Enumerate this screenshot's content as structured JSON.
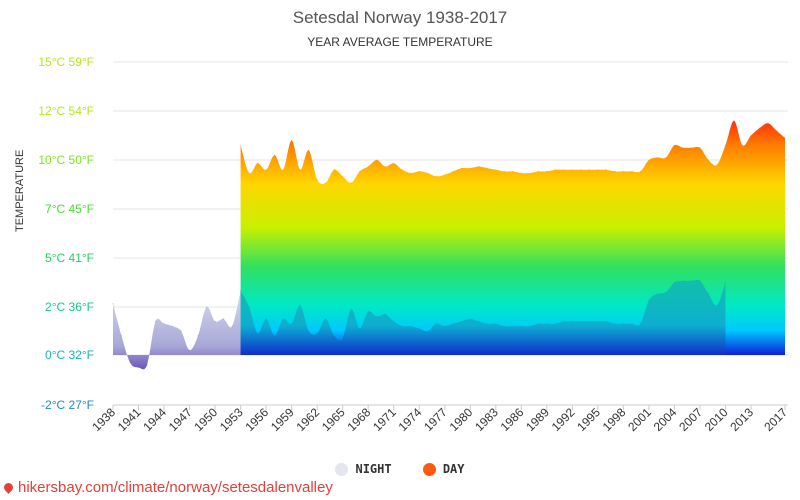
{
  "header": {
    "title": "Setesdal Norway 1938-2017",
    "subtitle": "YEAR AVERAGE TEMPERATURE"
  },
  "source_text": "hikersbay.com/climate/norway/setesdalenvalley",
  "legend": {
    "night_label": "NIGHT",
    "day_label": "DAY",
    "night_color": "#e3e6ef",
    "day_color": "#ff5a14"
  },
  "chart_data": {
    "type": "area",
    "title": "Setesdal Norway 1938-2017",
    "subtitle": "YEAR AVERAGE TEMPERATURE",
    "ylabel": "TEMPERATURE",
    "ylim": [
      -2,
      15
    ],
    "y_ticks": [
      {
        "value": 15,
        "label": "15°C 59°F",
        "color": "#b4e61e"
      },
      {
        "value": 12,
        "label": "12°C 54°F",
        "color": "#b4e61e"
      },
      {
        "value": 10,
        "label": "10°C 50°F",
        "color": "#78e61e"
      },
      {
        "value": 7,
        "label": "7°C 45°F",
        "color": "#46dc32"
      },
      {
        "value": 5,
        "label": "5°C 41°F",
        "color": "#1ed25a"
      },
      {
        "value": 2,
        "label": "2°C 36°F",
        "color": "#14c88c"
      },
      {
        "value": 0,
        "label": "0°C 32°F",
        "color": "#14b4b4"
      },
      {
        "value": -2,
        "label": "-2°C 27°F",
        "color": "#1e8cc8"
      }
    ],
    "xlim": [
      1938,
      2017
    ],
    "x_tick_labels": [
      "1938",
      "1941",
      "1944",
      "1947",
      "1950",
      "1953",
      "1956",
      "1959",
      "1962",
      "1965",
      "1968",
      "1971",
      "1974",
      "1977",
      "1980",
      "1983",
      "1986",
      "1989",
      "1992",
      "1995",
      "1998",
      "2001",
      "2004",
      "2007",
      "2010",
      "2013",
      "2017"
    ],
    "grid": true,
    "legend_position": "bottom",
    "series": [
      {
        "name": "NIGHT",
        "x": [
          1938,
          1939,
          1940,
          1941,
          1942,
          1943,
          1944,
          1945,
          1946,
          1947,
          1948,
          1949,
          1950,
          1951,
          1952,
          1953,
          1954,
          1955,
          1956,
          1957,
          1958,
          1959,
          1960,
          1961,
          1962,
          1963,
          1964,
          1965,
          1966,
          1967,
          1968,
          1969,
          1970,
          1971,
          1972,
          1973,
          1974,
          1975,
          1976,
          1977,
          1978,
          1979,
          1980,
          1981,
          1982,
          1983,
          1984,
          1985,
          1986,
          1987,
          1988,
          1989,
          1990,
          1991,
          1992,
          1993,
          1994,
          1995,
          1996,
          1997,
          1998,
          1999,
          2000,
          2001,
          2002,
          2003,
          2004,
          2005,
          2006,
          2007,
          2008,
          2009,
          2010
        ],
        "values": [
          2.2,
          0.8,
          -0.3,
          -0.5,
          -0.4,
          1.4,
          1.3,
          1.2,
          1.0,
          0.2,
          0.8,
          2.0,
          1.4,
          1.5,
          1.2,
          3.0,
          2.0,
          0.9,
          1.5,
          0.8,
          1.5,
          1.3,
          2.1,
          1.0,
          0.9,
          1.5,
          0.8,
          0.7,
          1.9,
          1.1,
          1.8,
          1.6,
          1.7,
          1.4,
          1.2,
          1.2,
          1.1,
          1.0,
          1.3,
          1.2,
          1.3,
          1.4,
          1.5,
          1.4,
          1.3,
          1.3,
          1.2,
          1.2,
          1.2,
          1.2,
          1.3,
          1.3,
          1.3,
          1.4,
          1.4,
          1.4,
          1.4,
          1.4,
          1.4,
          1.3,
          1.3,
          1.3,
          1.3,
          2.4,
          2.8,
          2.9,
          3.5,
          3.6,
          3.6,
          3.6,
          2.8,
          2.1,
          3.5
        ]
      },
      {
        "name": "DAY",
        "x": [
          1953,
          1954,
          1955,
          1956,
          1957,
          1958,
          1959,
          1960,
          1961,
          1962,
          1963,
          1964,
          1965,
          1966,
          1967,
          1968,
          1969,
          1970,
          1971,
          1972,
          1973,
          1974,
          1975,
          1976,
          1977,
          1978,
          1979,
          1980,
          1981,
          1982,
          1983,
          1984,
          1985,
          1986,
          1987,
          1988,
          1989,
          1990,
          1991,
          1992,
          1993,
          1994,
          1995,
          1996,
          1997,
          1998,
          1999,
          2000,
          2001,
          2002,
          2003,
          2004,
          2005,
          2006,
          2007,
          2008,
          2009,
          2010,
          2011,
          2012,
          2013,
          2014,
          2015,
          2016,
          2017
        ],
        "values": [
          10.6,
          9.2,
          9.8,
          9.4,
          10.2,
          9.4,
          10.8,
          9.4,
          10.4,
          8.8,
          8.6,
          9.4,
          9.0,
          8.6,
          9.3,
          9.6,
          10.0,
          9.6,
          9.8,
          9.4,
          9.2,
          9.3,
          9.2,
          9.0,
          9.1,
          9.3,
          9.5,
          9.5,
          9.6,
          9.5,
          9.4,
          9.3,
          9.3,
          9.2,
          9.2,
          9.3,
          9.3,
          9.4,
          9.4,
          9.4,
          9.4,
          9.4,
          9.4,
          9.4,
          9.3,
          9.3,
          9.3,
          9.3,
          10.0,
          10.1,
          10.1,
          10.6,
          10.5,
          10.5,
          10.5,
          10.0,
          9.7,
          10.6,
          11.6,
          10.6,
          11.0,
          11.3,
          11.5,
          11.2,
          10.9
        ]
      }
    ]
  }
}
